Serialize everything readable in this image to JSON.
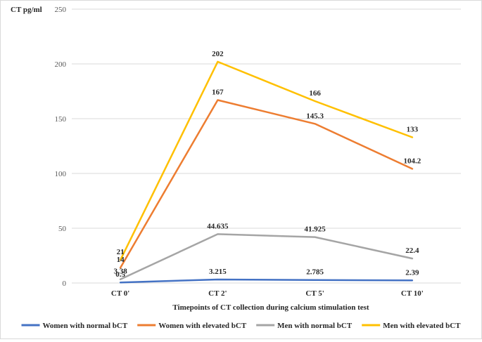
{
  "chart_data": {
    "type": "line",
    "title": "",
    "ylabel": "CT pg/ml",
    "xlabel": "Timepoints of CT collection during calcium stimulation test",
    "categories": [
      "CT 0'",
      "CT 2'",
      "CT 5'",
      "CT 10'"
    ],
    "ylim": [
      0,
      250
    ],
    "yticks": [
      "0",
      "50",
      "100",
      "150",
      "200",
      "250"
    ],
    "grid": true,
    "legend_position": "bottom",
    "series": [
      {
        "name": "Women with normal bCT",
        "color": "#4472c4",
        "values": [
          0.5,
          3.215,
          2.785,
          2.39
        ],
        "labels": [
          "0.5",
          "3.215",
          "2.785",
          "2.39"
        ]
      },
      {
        "name": "Women with elevated bCT",
        "color": "#ed7d31",
        "values": [
          14,
          167,
          145.3,
          104.2
        ],
        "labels": [
          "14",
          "167",
          "145.3",
          "104.2"
        ]
      },
      {
        "name": "Men with normal bCT",
        "color": "#a5a5a5",
        "values": [
          3.38,
          44.635,
          41.925,
          22.4
        ],
        "labels": [
          "3.38",
          "44.635",
          "41.925",
          "22.4"
        ]
      },
      {
        "name": "Men with elevated bCT",
        "color": "#ffc000",
        "values": [
          21,
          202,
          166,
          133
        ],
        "labels": [
          "21",
          "202",
          "166",
          "133"
        ]
      }
    ]
  }
}
